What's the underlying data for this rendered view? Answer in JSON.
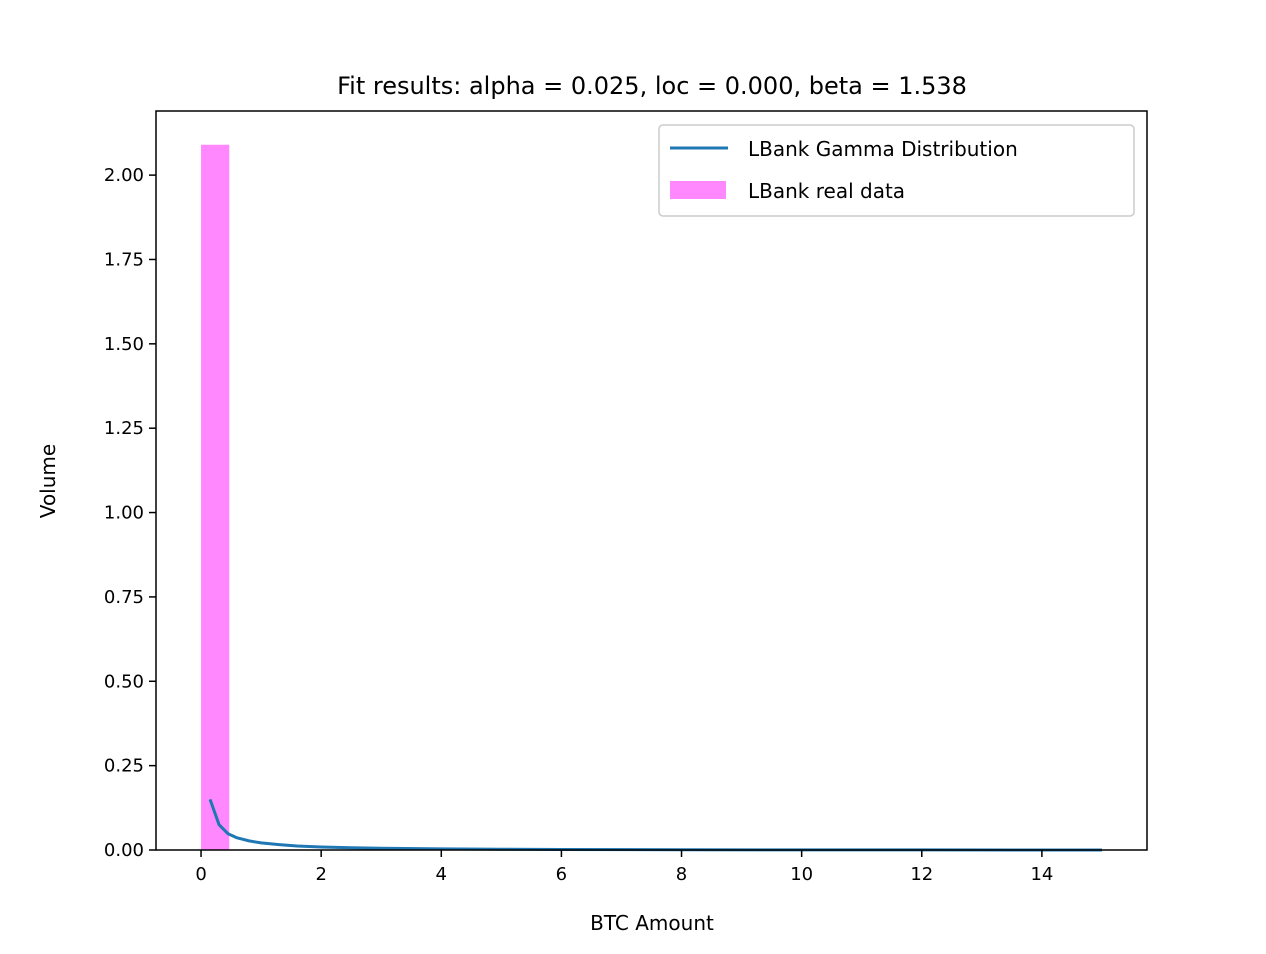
{
  "chart_data": {
    "type": "bar",
    "title": "Fit results: alpha = 0.025,  loc = 0.000, beta = 1.538",
    "xlabel": "BTC Amount",
    "ylabel": "Volume",
    "xlim": [
      -0.75,
      15.75
    ],
    "ylim": [
      0,
      2.19
    ],
    "xticks": [
      0,
      2,
      4,
      6,
      8,
      10,
      12,
      14
    ],
    "xtick_labels": [
      "0",
      "2",
      "4",
      "6",
      "8",
      "10",
      "12",
      "14"
    ],
    "yticks": [
      0,
      0.25,
      0.5,
      0.75,
      1.0,
      1.25,
      1.5,
      1.75,
      2.0
    ],
    "ytick_labels": [
      "0.00",
      "0.25",
      "0.50",
      "0.75",
      "1.00",
      "1.25",
      "1.50",
      "1.75",
      "2.00"
    ],
    "grid": false,
    "legend_position": "top-right",
    "series": [
      {
        "name": "LBank Gamma Distribution",
        "type": "line",
        "color": "#1f77b4",
        "x": [
          0.15,
          0.3,
          0.45,
          0.6,
          0.8,
          1.0,
          1.3,
          1.6,
          2.0,
          2.5,
          3.0,
          4.0,
          5.0,
          6.0,
          8.0,
          10.0,
          12.0,
          15.0
        ],
        "y": [
          0.15,
          0.075,
          0.048,
          0.036,
          0.027,
          0.021,
          0.016,
          0.012,
          0.009,
          0.0068,
          0.0052,
          0.0033,
          0.0022,
          0.0015,
          0.0008,
          0.0004,
          0.0002,
          0.0001
        ]
      },
      {
        "name": "LBank real data",
        "type": "histogram",
        "color": "#ff88ff",
        "bin_edges": [
          0.0,
          0.47,
          2.82,
          3.29
        ],
        "values": [
          2.09,
          0.0,
          0.006
        ]
      }
    ]
  }
}
